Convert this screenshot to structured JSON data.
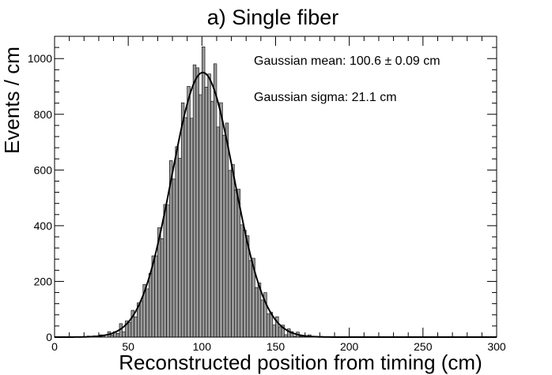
{
  "chart_data": {
    "type": "histogram",
    "title": "a) Single fiber",
    "xlabel": "Reconstructed position from timing (cm)",
    "ylabel": "Events / cm",
    "xlim": [
      0,
      300
    ],
    "ylim": [
      0,
      1080
    ],
    "x_ticks": [
      0,
      50,
      100,
      150,
      200,
      250,
      300
    ],
    "x_tick_labels": [
      "0",
      "50",
      "100",
      "150",
      "200",
      "250",
      "300"
    ],
    "y_ticks": [
      0,
      200,
      400,
      600,
      800,
      1000
    ],
    "y_tick_labels": [
      "0",
      "200",
      "400",
      "600",
      "800",
      "1000"
    ],
    "fit": {
      "type": "gaussian",
      "mean": 100.6,
      "sigma": 21.1,
      "amplitude": 950
    },
    "histogram": {
      "bin_width": 2,
      "bin_start": 0,
      "noise": [
        0,
        3,
        -2,
        4,
        -5,
        2,
        -3,
        6,
        -4,
        1,
        -6,
        5,
        -2,
        3,
        -7,
        4,
        2,
        -5,
        6,
        -3,
        1,
        -4,
        7,
        -6,
        3,
        -2,
        5,
        -4,
        2,
        -1,
        4,
        -3
      ]
    },
    "annotations": [
      "Gaussian mean: 100.6 ± 0.09 cm",
      "Gaussian sigma: 21.1 cm"
    ]
  }
}
